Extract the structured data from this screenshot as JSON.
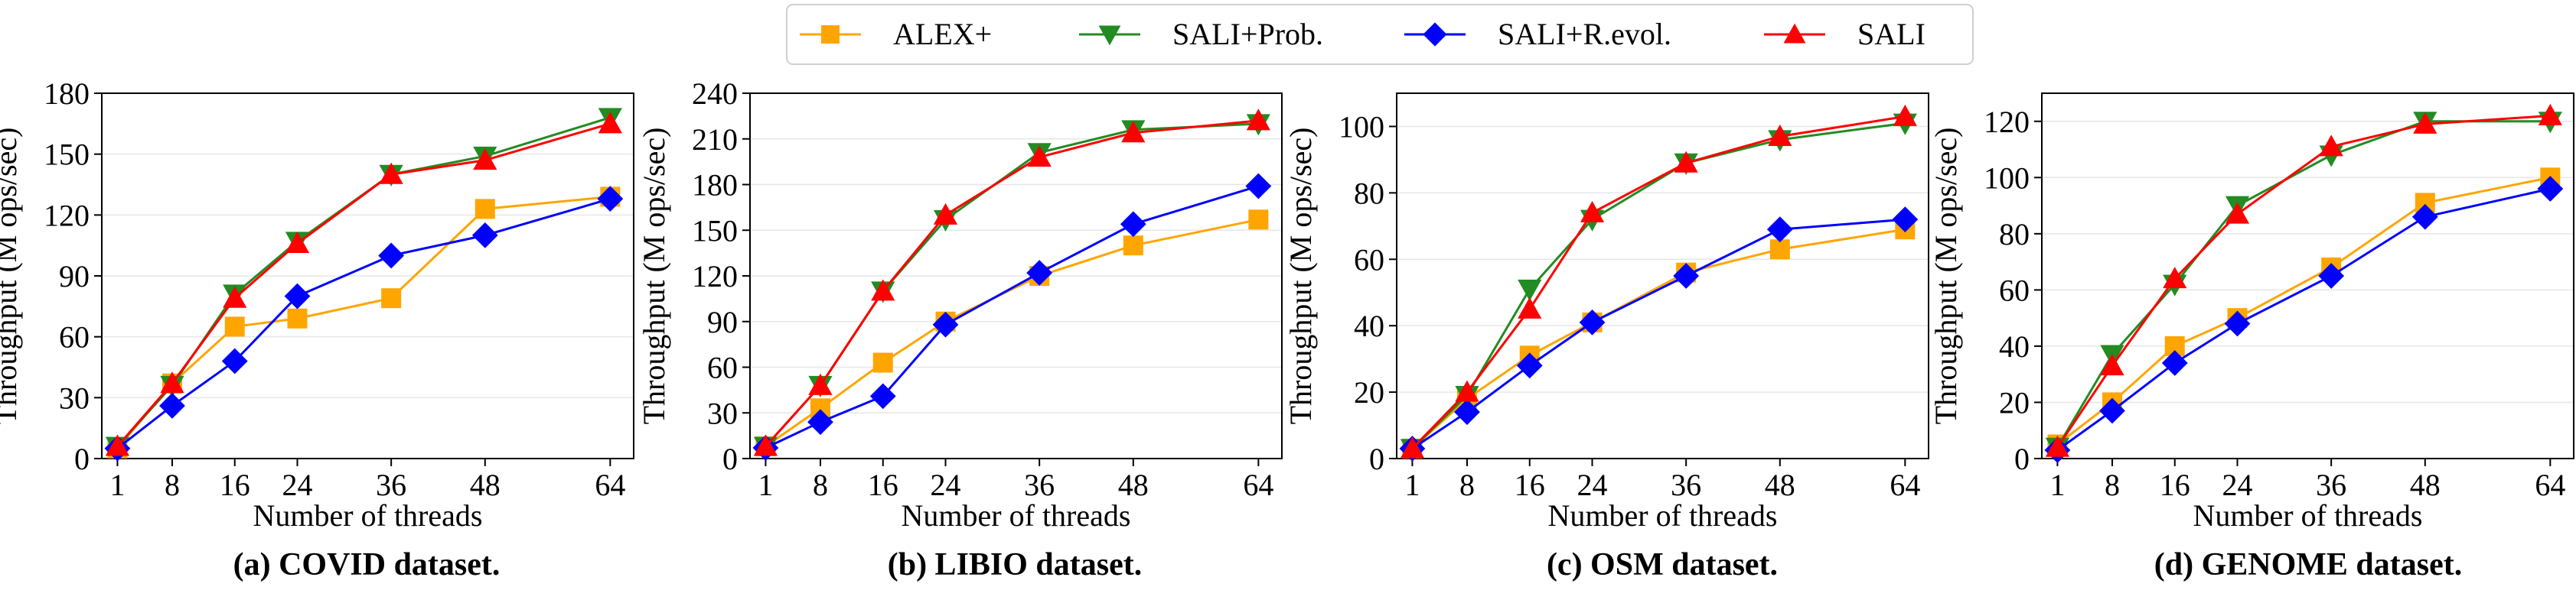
{
  "colors": {
    "ALEX+": "#FFA500",
    "SALI+Prob.": "#228B22",
    "SALI+R.evol.": "#0000FF",
    "SALI": "#FF0000",
    "axis": "#000000",
    "grid": "#e6e6e6"
  },
  "legend": {
    "items": [
      {
        "name": "ALEX+",
        "marker": "square"
      },
      {
        "name": "SALI+Prob.",
        "marker": "triangle-down"
      },
      {
        "name": "SALI+R.evol.",
        "marker": "diamond"
      },
      {
        "name": "SALI",
        "marker": "triangle-up"
      }
    ]
  },
  "chart_data": [
    {
      "type": "line",
      "caption": "(a) COVID dataset.",
      "xlabel": "Number of threads",
      "ylabel": "Throughput (M ops/sec)",
      "x": [
        1,
        8,
        16,
        24,
        36,
        48,
        64
      ],
      "xlim": [
        -1,
        67
      ],
      "ylim": [
        0,
        180
      ],
      "yticks": [
        0,
        30,
        60,
        90,
        120,
        150,
        180
      ],
      "grid": "horizontal",
      "series": [
        {
          "name": "ALEX+",
          "values": [
            5,
            37,
            65,
            69,
            79,
            123,
            129
          ]
        },
        {
          "name": "SALI+Prob.",
          "values": [
            6,
            36,
            81,
            107,
            140,
            149,
            168
          ]
        },
        {
          "name": "SALI+R.evol.",
          "values": [
            5,
            26,
            48,
            80,
            100,
            110,
            128
          ]
        },
        {
          "name": "SALI",
          "values": [
            6,
            37,
            79,
            106,
            140,
            147,
            165
          ]
        }
      ]
    },
    {
      "type": "line",
      "caption": "(b) LIBIO dataset.",
      "xlabel": "Number of threads",
      "ylabel": "Throughput (M ops/sec)",
      "x": [
        1,
        8,
        16,
        24,
        36,
        48,
        64
      ],
      "xlim": [
        -1,
        67
      ],
      "ylim": [
        0,
        240
      ],
      "yticks": [
        0,
        30,
        60,
        90,
        120,
        150,
        180,
        210,
        240
      ],
      "grid": "horizontal",
      "series": [
        {
          "name": "ALEX+",
          "values": [
            8,
            33,
            63,
            90,
            120,
            140,
            157
          ]
        },
        {
          "name": "SALI+Prob.",
          "values": [
            8,
            48,
            110,
            157,
            201,
            216,
            220
          ]
        },
        {
          "name": "SALI+R.evol.",
          "values": [
            7,
            24,
            41,
            88,
            122,
            154,
            179
          ]
        },
        {
          "name": "SALI",
          "values": [
            8,
            48,
            110,
            160,
            198,
            214,
            222
          ]
        }
      ]
    },
    {
      "type": "line",
      "caption": "(c) OSM dataset.",
      "xlabel": "Number of threads",
      "ylabel": "Throughput (M ops/sec)",
      "x": [
        1,
        8,
        16,
        24,
        36,
        48,
        64
      ],
      "xlim": [
        -1,
        67
      ],
      "ylim": [
        0,
        110
      ],
      "yticks": [
        0,
        20,
        40,
        60,
        80,
        100
      ],
      "grid": "horizontal",
      "series": [
        {
          "name": "ALEX+",
          "values": [
            3,
            18,
            31,
            41,
            56,
            63,
            69
          ]
        },
        {
          "name": "SALI+Prob.",
          "values": [
            3,
            19,
            51,
            72,
            89,
            96,
            101
          ]
        },
        {
          "name": "SALI+R.evol.",
          "values": [
            3,
            14,
            28,
            41,
            55,
            69,
            72
          ]
        },
        {
          "name": "SALI",
          "values": [
            3,
            20,
            45,
            74,
            89,
            97,
            103
          ]
        }
      ]
    },
    {
      "type": "line",
      "caption": "(d) GENOME dataset.",
      "xlabel": "Number of threads",
      "ylabel": "Throughput (M ops/sec)",
      "x": [
        1,
        8,
        16,
        24,
        36,
        48,
        64
      ],
      "xlim": [
        -1,
        67
      ],
      "ylim": [
        0,
        130
      ],
      "yticks": [
        0,
        20,
        40,
        60,
        80,
        100,
        120
      ],
      "grid": "horizontal",
      "series": [
        {
          "name": "ALEX+",
          "values": [
            5,
            20,
            40,
            50,
            68,
            91,
            100
          ]
        },
        {
          "name": "SALI+Prob.",
          "values": [
            4,
            37,
            62,
            90,
            108,
            120,
            120
          ]
        },
        {
          "name": "SALI+R.evol.",
          "values": [
            3,
            17,
            34,
            48,
            65,
            86,
            96
          ]
        },
        {
          "name": "SALI",
          "values": [
            4,
            33,
            64,
            87,
            111,
            119,
            122
          ]
        }
      ]
    }
  ]
}
